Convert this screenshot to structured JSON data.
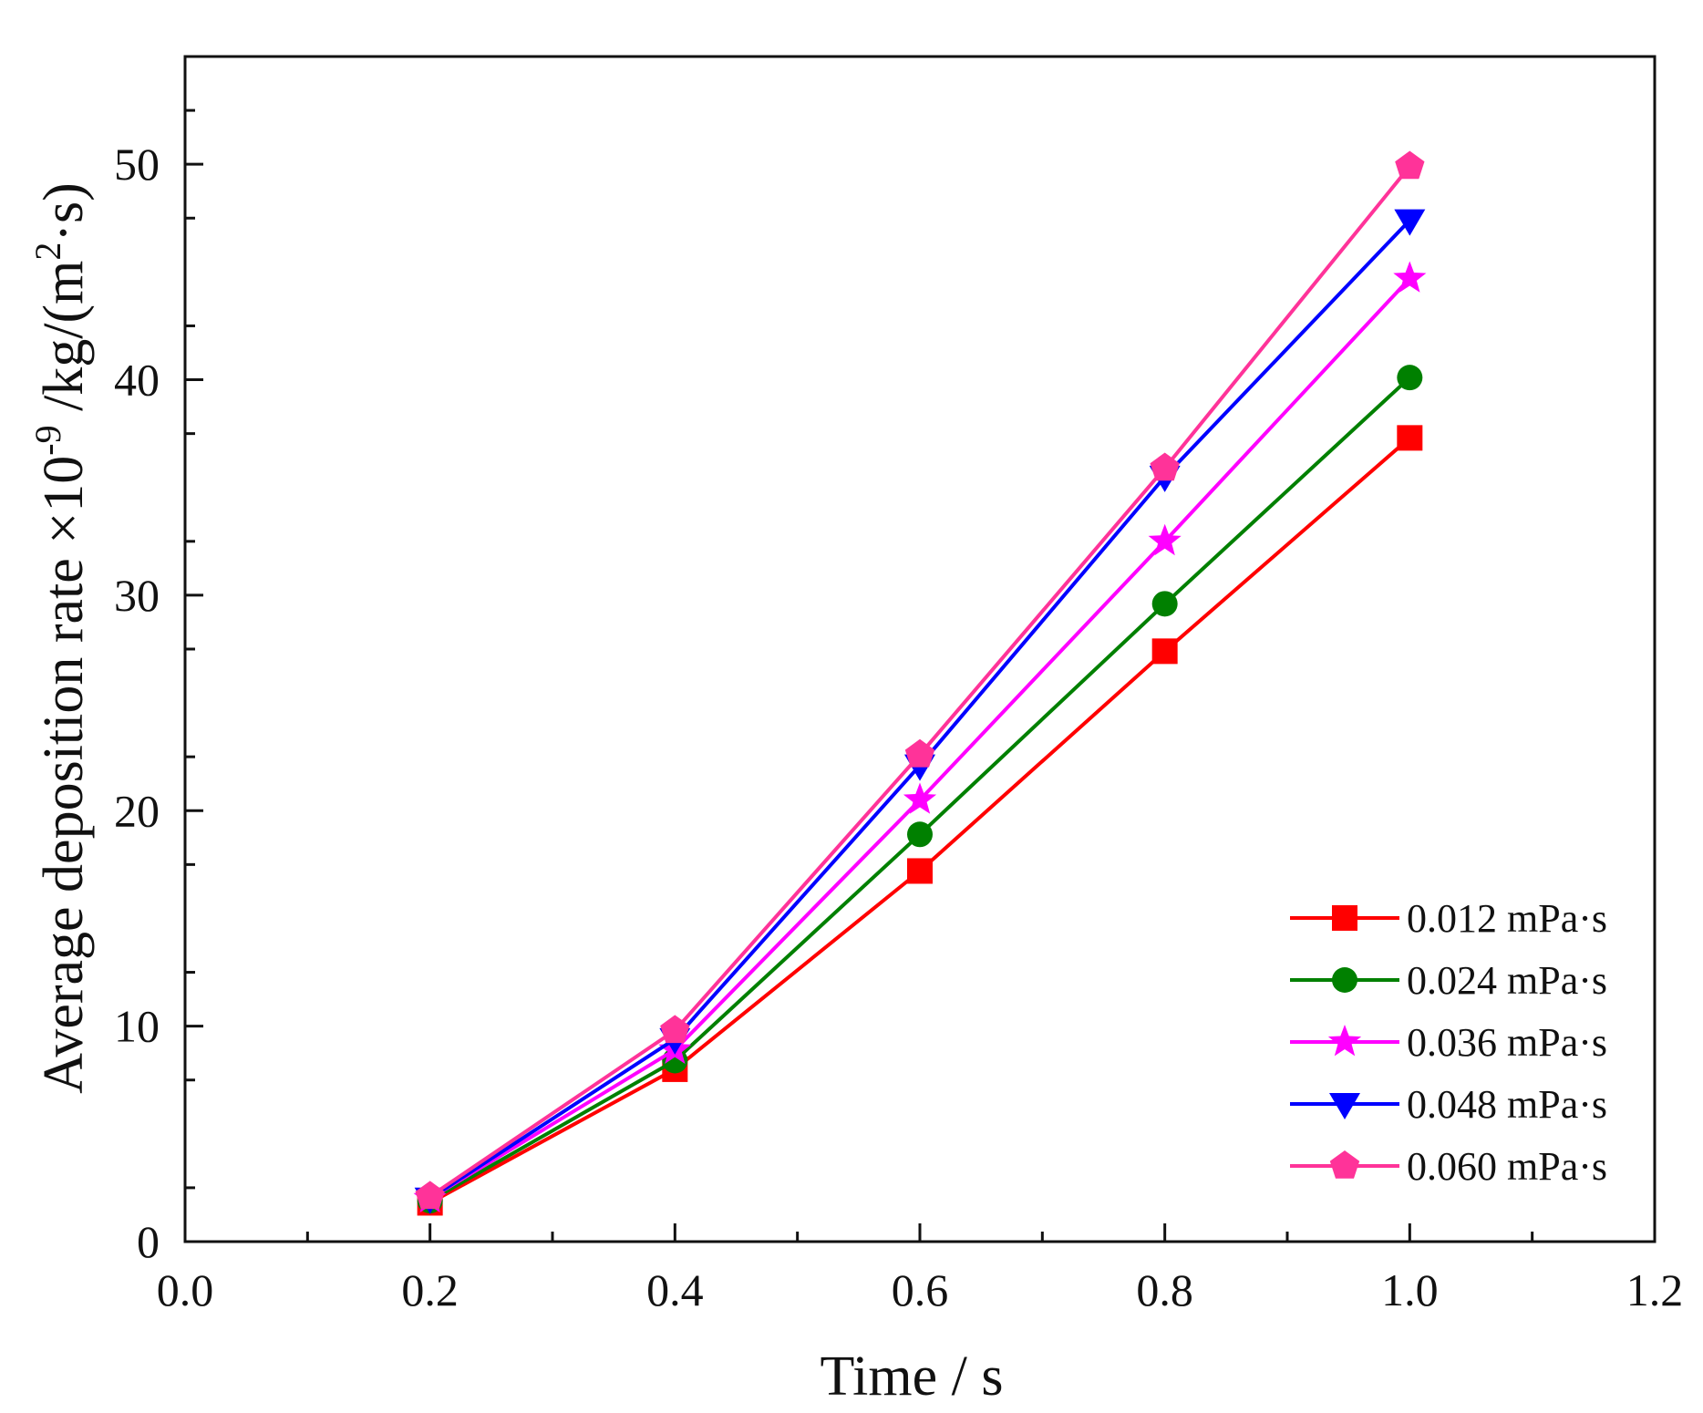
{
  "chart_data": {
    "type": "line",
    "title": "",
    "xlabel": "Time / s",
    "ylabel": {
      "prefix": "Average deposition rate ×10",
      "exponent": "-9",
      "middle": " /kg/(m",
      "sq": "2",
      "suffix": "·s)"
    },
    "xlim": [
      0.0,
      1.2
    ],
    "ylim": [
      0,
      55
    ],
    "x_major_ticks": [
      0.0,
      0.2,
      0.4,
      0.6,
      0.8,
      1.0,
      1.2
    ],
    "x_tick_labels": [
      "0.0",
      "0.2",
      "0.4",
      "0.6",
      "0.8",
      "1.0",
      "1.2"
    ],
    "y_major_ticks": [
      0,
      10,
      20,
      30,
      40,
      50
    ],
    "y_tick_labels": [
      "0",
      "10",
      "20",
      "30",
      "40",
      "50"
    ],
    "grid": false,
    "legend_position": "bottom-right",
    "x": [
      0.2,
      0.4,
      0.6,
      0.8,
      1.0
    ],
    "series": [
      {
        "name": "0.012 mPa·s",
        "color": "#ff0000",
        "marker": "square",
        "values": [
          1.8,
          8.0,
          17.2,
          27.4,
          37.3
        ]
      },
      {
        "name": "0.024 mPa·s",
        "color": "#008000",
        "marker": "circle",
        "values": [
          1.9,
          8.4,
          18.9,
          29.6,
          40.1
        ]
      },
      {
        "name": "0.036 mPa·s",
        "color": "#ff00ff",
        "marker": "star",
        "values": [
          2.0,
          8.9,
          20.5,
          32.5,
          44.7
        ]
      },
      {
        "name": "0.048 mPa·s",
        "color": "#0000ff",
        "marker": "triangle-down",
        "values": [
          2.0,
          9.4,
          22.1,
          35.5,
          47.4
        ]
      },
      {
        "name": "0.060 mPa·s",
        "color": "#ff3399",
        "marker": "pentagon",
        "values": [
          2.1,
          9.8,
          22.6,
          35.9,
          49.9
        ]
      }
    ]
  }
}
